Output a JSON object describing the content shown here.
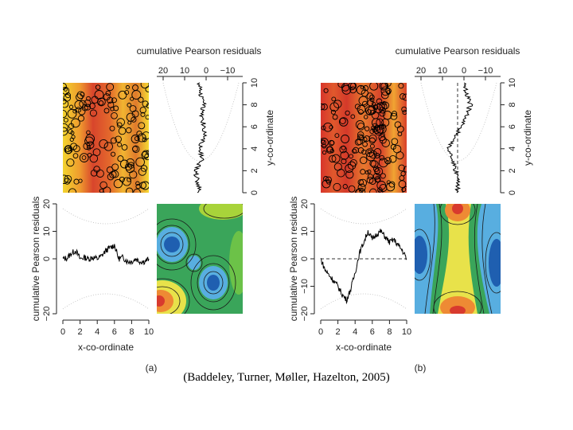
{
  "caption": "(Baddeley, Turner, Møller, Hazelton, 2005)",
  "chart_data": [
    {
      "type": "residual-diagnostic",
      "panel_label": "(a)",
      "y_residual_title": "cumulative Pearson residuals",
      "y_residual_ticks": [
        "20",
        "10",
        "0",
        "−10"
      ],
      "y_coord_label": "y-co-ordinate",
      "y_coord_ticks": [
        "0",
        "2",
        "4",
        "6",
        "8",
        "10"
      ],
      "x_residual_label": "cumulative Pearson residuals",
      "x_residual_ticks": [
        "−20",
        "0",
        "10",
        "20"
      ],
      "x_coord_label": "x-co-ordinate",
      "x_coord_ticks": [
        "0",
        "2",
        "4",
        "6",
        "8",
        "10"
      ],
      "x_lim": [
        0,
        10
      ],
      "resid_lim": [
        -20,
        20
      ],
      "x_residual_trace": [
        [
          0,
          0
        ],
        [
          0.5,
          0.3
        ],
        [
          1,
          2
        ],
        [
          1.5,
          3
        ],
        [
          2,
          0
        ],
        [
          2.5,
          0.5
        ],
        [
          3,
          0
        ],
        [
          3.5,
          0.5
        ],
        [
          4,
          0
        ],
        [
          4.5,
          1
        ],
        [
          5,
          3
        ],
        [
          5.5,
          4
        ],
        [
          6,
          5
        ],
        [
          6.5,
          0
        ],
        [
          7,
          0.5
        ],
        [
          7.5,
          -1
        ],
        [
          8,
          -1
        ],
        [
          8.5,
          0
        ],
        [
          9,
          -1
        ],
        [
          9.5,
          -1
        ],
        [
          10,
          0
        ]
      ],
      "y_residual_trace": [
        [
          0,
          0
        ],
        [
          1,
          1
        ],
        [
          2,
          2
        ],
        [
          3,
          -1
        ],
        [
          4,
          0
        ],
        [
          5,
          -2
        ],
        [
          6,
          -2
        ],
        [
          7,
          -1
        ],
        [
          8,
          -2
        ],
        [
          9,
          0
        ],
        [
          10,
          0
        ]
      ],
      "show_zero_line": false,
      "heatmap_colormap": [
        "#cc2f2a",
        "#f6d530"
      ],
      "contour_colormap": [
        "#1f5fb0",
        "#58aee0",
        "#3aa55a",
        "#e8e24a",
        "#e2453a"
      ]
    },
    {
      "type": "residual-diagnostic",
      "panel_label": "(b)",
      "y_residual_title": "cumulative Pearson residuals",
      "y_residual_ticks": [
        "20",
        "10",
        "0",
        "−10"
      ],
      "y_coord_label": "y-co-ordinate",
      "y_coord_ticks": [
        "0",
        "2",
        "4",
        "6",
        "8",
        "10"
      ],
      "x_residual_label": "cumulative Pearson residuals",
      "x_residual_ticks": [
        "−20",
        "−10",
        "0",
        "10",
        "20"
      ],
      "x_coord_label": "x-co-ordinate",
      "x_coord_ticks": [
        "0",
        "2",
        "4",
        "6",
        "8",
        "10"
      ],
      "x_lim": [
        0,
        10
      ],
      "resid_lim": [
        -20,
        20
      ],
      "x_residual_trace": [
        [
          0,
          0
        ],
        [
          0.5,
          -4
        ],
        [
          1,
          -6
        ],
        [
          1.5,
          -8
        ],
        [
          2,
          -10
        ],
        [
          2.5,
          -13
        ],
        [
          3,
          -15
        ],
        [
          3.5,
          -11
        ],
        [
          4,
          -5
        ],
        [
          4.5,
          2
        ],
        [
          5,
          6
        ],
        [
          5.5,
          10
        ],
        [
          6,
          7
        ],
        [
          6.5,
          9
        ],
        [
          7,
          10
        ],
        [
          7.5,
          8
        ],
        [
          8,
          6
        ],
        [
          8.5,
          7
        ],
        [
          9,
          5
        ],
        [
          9.5,
          3
        ],
        [
          10,
          0
        ]
      ],
      "y_residual_trace": [
        [
          0,
          0
        ],
        [
          1,
          0
        ],
        [
          2,
          1
        ],
        [
          3,
          2
        ],
        [
          4,
          4
        ],
        [
          5,
          2
        ],
        [
          6,
          -2
        ],
        [
          7,
          -4
        ],
        [
          8,
          -6
        ],
        [
          9,
          -4
        ],
        [
          10,
          -3
        ]
      ],
      "show_zero_line": true,
      "heatmap_colormap": [
        "#d6382e",
        "#f2c93a"
      ],
      "contour_colormap": [
        "#1f5fb0",
        "#58aee0",
        "#3aa55a",
        "#e8e24a",
        "#e2453a"
      ]
    }
  ]
}
